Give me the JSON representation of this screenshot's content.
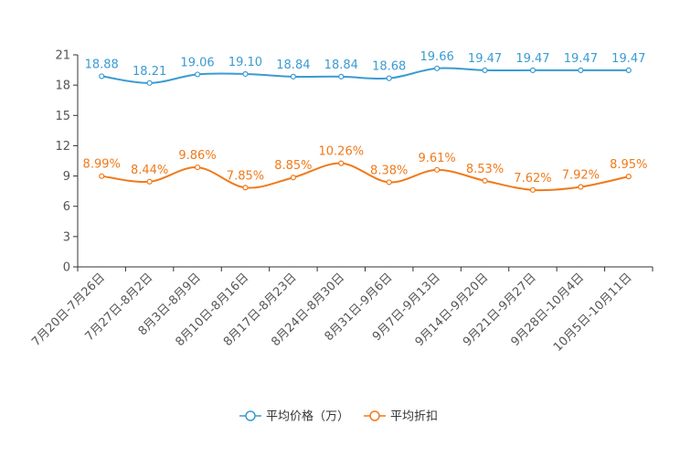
{
  "chart_data": {
    "type": "line",
    "categories": [
      "7月20日-7月26日",
      "7月27日-8月2日",
      "8月3日-8月9日",
      "8月10日-8月16日",
      "8月17日-8月23日",
      "8月24日-8月30日",
      "8月31日-9月6日",
      "9月7日-9月13日",
      "9月14日-9月20日",
      "9月21日-9月27日",
      "9月28日-10月4日",
      "10月5日-10月11日"
    ],
    "ylim": [
      0,
      21
    ],
    "yticks": [
      0,
      3,
      6,
      9,
      12,
      15,
      18,
      21
    ],
    "grid": false,
    "legend_position": "bottom-center",
    "series": [
      {
        "name": "平均价格（万）",
        "color": "#3a9bd2",
        "values": [
          18.88,
          18.21,
          19.06,
          19.1,
          18.84,
          18.84,
          18.68,
          19.66,
          19.47,
          19.47,
          19.47,
          19.47
        ],
        "labels": [
          "18.88",
          "18.21",
          "19.06",
          "19.10",
          "18.84",
          "18.84",
          "18.68",
          "19.66",
          "19.47",
          "19.47",
          "19.47",
          "19.47"
        ]
      },
      {
        "name": "平均折扣",
        "color": "#f07a1a",
        "values": [
          8.99,
          8.44,
          9.86,
          7.85,
          8.85,
          10.26,
          8.38,
          9.61,
          8.53,
          7.62,
          7.92,
          8.95
        ],
        "labels": [
          "8.99%",
          "8.44%",
          "9.86%",
          "7.85%",
          "8.85%",
          "10.26%",
          "8.38%",
          "9.61%",
          "8.53%",
          "7.62%",
          "7.92%",
          "8.95%"
        ]
      }
    ]
  }
}
